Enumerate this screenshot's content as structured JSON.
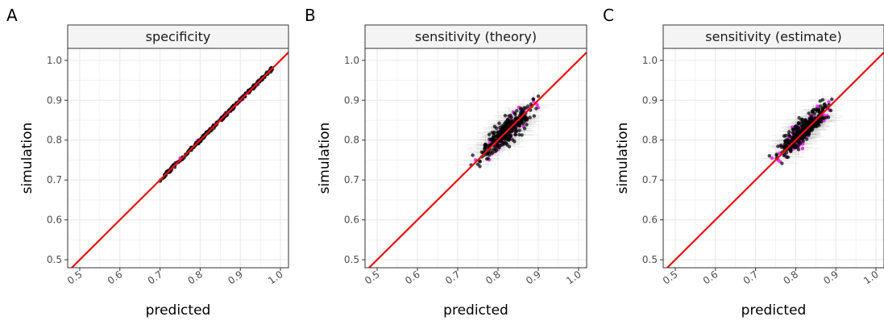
{
  "chart_data": [
    {
      "type": "scatter",
      "panel_label": "A",
      "title": "specificity",
      "xlabel": "predicted",
      "ylabel": "simulation",
      "xlim": [
        0.47,
        1.02
      ],
      "ylim": [
        0.48,
        1.03
      ],
      "x_ticks": [
        "0.5",
        "0.6",
        "0.7",
        "0.8",
        "0.9",
        "1.0"
      ],
      "y_ticks": [
        "0.5",
        "0.6",
        "0.7",
        "0.8",
        "0.9",
        "1.0"
      ],
      "grid": true,
      "reference_line": {
        "slope": 1,
        "intercept": 0,
        "color": "#ee1111"
      },
      "point_colors": {
        "main": "#000000",
        "highlight": "#ee22ee"
      },
      "errorbar_color": "#bbbbbb",
      "series": [
        {
          "x_range": [
            0.7,
            0.98
          ],
          "y_offset_range": [
            -0.005,
            0.005
          ],
          "n_points_approx": 300
        }
      ]
    },
    {
      "type": "scatter",
      "panel_label": "B",
      "title": "sensitivity (theory)",
      "xlabel": "predicted",
      "ylabel": "simulation",
      "xlim": [
        0.47,
        1.02
      ],
      "ylim": [
        0.48,
        1.03
      ],
      "x_ticks": [
        "0.5",
        "0.6",
        "0.7",
        "0.8",
        "0.9",
        "1.0"
      ],
      "y_ticks": [
        "0.5",
        "0.6",
        "0.7",
        "0.8",
        "0.9",
        "1.0"
      ],
      "grid": true,
      "reference_line": {
        "slope": 1,
        "intercept": 0,
        "color": "#ee1111"
      },
      "point_colors": {
        "main": "#000000",
        "highlight": "#ee22ee"
      },
      "errorbar_color": "#bbbbbb",
      "series": [
        {
          "x_range": [
            0.72,
            0.9
          ],
          "y_range": [
            0.72,
            0.91
          ],
          "center": [
            0.825,
            0.825
          ],
          "n_points_approx": 400
        }
      ]
    },
    {
      "type": "scatter",
      "panel_label": "C",
      "title": "sensitivity (estimate)",
      "xlabel": "predicted",
      "ylabel": "simulation",
      "xlim": [
        0.47,
        1.02
      ],
      "ylim": [
        0.48,
        1.03
      ],
      "x_ticks": [
        "0.5",
        "0.6",
        "0.7",
        "0.8",
        "0.9",
        "1.0"
      ],
      "y_ticks": [
        "0.5",
        "0.6",
        "0.7",
        "0.8",
        "0.9",
        "1.0"
      ],
      "grid": true,
      "reference_line": {
        "slope": 1,
        "intercept": 0,
        "color": "#ee1111"
      },
      "point_colors": {
        "main": "#000000",
        "highlight": "#ee22ee"
      },
      "errorbar_color": "#bbbbbb",
      "series": [
        {
          "x_range": [
            0.73,
            0.89
          ],
          "y_range": [
            0.73,
            0.91
          ],
          "center": [
            0.82,
            0.825
          ],
          "n_points_approx": 400
        }
      ]
    }
  ]
}
